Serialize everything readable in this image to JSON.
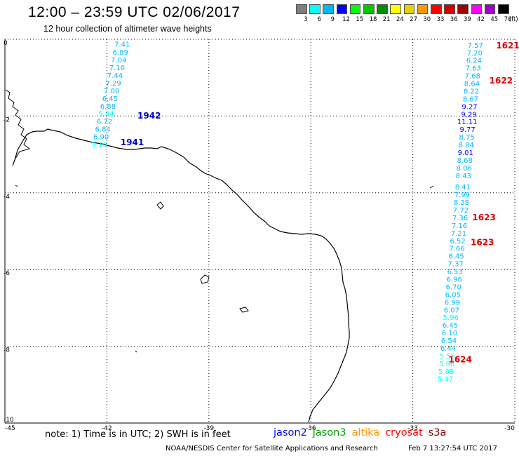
{
  "header": {
    "title": "12:00 – 23:59 UTC 02/06/2017",
    "subtitle": "12 hour collection of altimeter wave heights"
  },
  "colorbar": {
    "unit": "(ft)",
    "levels": [
      {
        "label": "3",
        "color": "#7f7f7f"
      },
      {
        "label": "6",
        "color": "#00ffff"
      },
      {
        "label": "9",
        "color": "#00b7ff"
      },
      {
        "label": "12",
        "color": "#0000ff"
      },
      {
        "label": "15",
        "color": "#00ff00"
      },
      {
        "label": "18",
        "color": "#00c800"
      },
      {
        "label": "21",
        "color": "#008c00"
      },
      {
        "label": "24",
        "color": "#ffff00"
      },
      {
        "label": "27",
        "color": "#e5d000"
      },
      {
        "label": "30",
        "color": "#ff9900"
      },
      {
        "label": "33",
        "color": "#ff0000"
      },
      {
        "label": "36",
        "color": "#d00000"
      },
      {
        "label": "39",
        "color": "#a00000"
      },
      {
        "label": "42",
        "color": "#ff00ff"
      },
      {
        "label": "45",
        "color": "#a000c8"
      },
      {
        "label": "70",
        "color": "#000000"
      }
    ]
  },
  "axes": {
    "lon_ticks": [
      "-45",
      "-42",
      "-39",
      "-36",
      "-33",
      "-30"
    ],
    "lat_ticks": [
      "0",
      "-2",
      "-4",
      "-6",
      "-8",
      "-10"
    ],
    "lon_range": [
      -45,
      -30
    ],
    "lat_range": [
      0,
      -10
    ]
  },
  "tracks": [
    {
      "id": "track-west",
      "labels": [
        {
          "text": "1942",
          "color": "#0000c8",
          "lon": -41.1,
          "lat": -1.9
        },
        {
          "text": "1941",
          "color": "#0000c8",
          "lon": -41.6,
          "lat": -2.6
        }
      ],
      "points": [
        {
          "v": "7.41",
          "lon": -41.55,
          "lat": -0.05,
          "c": "#00b7ff"
        },
        {
          "v": "6.89",
          "lon": -41.6,
          "lat": -0.26,
          "c": "#00b7ff"
        },
        {
          "v": "7.04",
          "lon": -41.65,
          "lat": -0.46,
          "c": "#00b7ff"
        },
        {
          "v": "7.10",
          "lon": -41.7,
          "lat": -0.66,
          "c": "#00b7ff"
        },
        {
          "v": "7.44",
          "lon": -41.76,
          "lat": -0.86,
          "c": "#00b7ff"
        },
        {
          "v": "7.29",
          "lon": -41.81,
          "lat": -1.06,
          "c": "#00b7ff"
        },
        {
          "v": "7.00",
          "lon": -41.86,
          "lat": -1.26,
          "c": "#00b7ff"
        },
        {
          "v": "6.45",
          "lon": -41.91,
          "lat": -1.46,
          "c": "#00b7ff"
        },
        {
          "v": "6.88",
          "lon": -41.97,
          "lat": -1.66,
          "c": "#00b7ff"
        },
        {
          "v": "5.84",
          "lon": -42.02,
          "lat": -1.86,
          "c": "#00ffff"
        },
        {
          "v": "6.72",
          "lon": -42.07,
          "lat": -2.06,
          "c": "#00b7ff"
        },
        {
          "v": "6.84",
          "lon": -42.12,
          "lat": -2.26,
          "c": "#00b7ff"
        },
        {
          "v": "6.90",
          "lon": -42.17,
          "lat": -2.46,
          "c": "#00b7ff"
        },
        {
          "v": "5.10",
          "lon": -42.22,
          "lat": -2.66,
          "c": "#00ffff"
        }
      ]
    },
    {
      "id": "track-east",
      "labels": [
        {
          "text": "1621",
          "color": "#e00000",
          "lon": -30.55,
          "lat": -0.07
        },
        {
          "text": "1622",
          "color": "#e00000",
          "lon": -30.75,
          "lat": -0.99
        },
        {
          "text": "1623",
          "color": "#e00000",
          "lon": -31.25,
          "lat": -4.55
        },
        {
          "text": "1623",
          "color": "#e00000",
          "lon": -31.3,
          "lat": -5.2
        },
        {
          "text": "1624",
          "color": "#e00000",
          "lon": -31.95,
          "lat": -8.25
        }
      ],
      "points": [
        {
          "v": "7.57",
          "lon": -31.16,
          "lat": -0.07,
          "c": "#00b7ff"
        },
        {
          "v": "7.20",
          "lon": -31.18,
          "lat": -0.27,
          "c": "#00b7ff"
        },
        {
          "v": "6.24",
          "lon": -31.2,
          "lat": -0.47,
          "c": "#00b7ff"
        },
        {
          "v": "7.63",
          "lon": -31.22,
          "lat": -0.67,
          "c": "#00b7ff"
        },
        {
          "v": "7.68",
          "lon": -31.24,
          "lat": -0.87,
          "c": "#00b7ff"
        },
        {
          "v": "8.64",
          "lon": -31.26,
          "lat": -1.07,
          "c": "#00b7ff"
        },
        {
          "v": "8.22",
          "lon": -31.28,
          "lat": -1.27,
          "c": "#00b7ff"
        },
        {
          "v": "8.67",
          "lon": -31.3,
          "lat": -1.47,
          "c": "#00b7ff"
        },
        {
          "v": "9.27",
          "lon": -31.33,
          "lat": -1.67,
          "c": "#0000ff"
        },
        {
          "v": "9.29",
          "lon": -31.35,
          "lat": -1.87,
          "c": "#0000ff"
        },
        {
          "v": "11.11",
          "lon": -31.4,
          "lat": -2.07,
          "c": "#0000ff"
        },
        {
          "v": "9.77",
          "lon": -31.39,
          "lat": -2.27,
          "c": "#0000ff"
        },
        {
          "v": "8.75",
          "lon": -31.41,
          "lat": -2.47,
          "c": "#00b7ff"
        },
        {
          "v": "8.84",
          "lon": -31.43,
          "lat": -2.67,
          "c": "#00b7ff"
        },
        {
          "v": "9.01",
          "lon": -31.45,
          "lat": -2.87,
          "c": "#0000ff"
        },
        {
          "v": "8.68",
          "lon": -31.47,
          "lat": -3.07,
          "c": "#00b7ff"
        },
        {
          "v": "8.06",
          "lon": -31.49,
          "lat": -3.27,
          "c": "#00b7ff"
        },
        {
          "v": "8.43",
          "lon": -31.51,
          "lat": -3.47,
          "c": "#00b7ff"
        },
        {
          "v": "8.41",
          "lon": -31.53,
          "lat": -3.77,
          "c": "#00b7ff"
        },
        {
          "v": "7.99",
          "lon": -31.55,
          "lat": -3.97,
          "c": "#00b7ff"
        },
        {
          "v": "8.28",
          "lon": -31.57,
          "lat": -4.17,
          "c": "#00b7ff"
        },
        {
          "v": "7.72",
          "lon": -31.59,
          "lat": -4.37,
          "c": "#00b7ff"
        },
        {
          "v": "7.36",
          "lon": -31.61,
          "lat": -4.57,
          "c": "#00b7ff"
        },
        {
          "v": "7.16",
          "lon": -31.63,
          "lat": -4.77,
          "c": "#00b7ff"
        },
        {
          "v": "7.21",
          "lon": -31.65,
          "lat": -4.97,
          "c": "#00b7ff"
        },
        {
          "v": "6.52",
          "lon": -31.68,
          "lat": -5.17,
          "c": "#00b7ff"
        },
        {
          "v": "7.66",
          "lon": -31.7,
          "lat": -5.37,
          "c": "#00b7ff"
        },
        {
          "v": "6.45",
          "lon": -31.72,
          "lat": -5.57,
          "c": "#00b7ff"
        },
        {
          "v": "7.37",
          "lon": -31.74,
          "lat": -5.77,
          "c": "#00b7ff"
        },
        {
          "v": "6.53",
          "lon": -31.76,
          "lat": -5.97,
          "c": "#00b7ff"
        },
        {
          "v": "6.96",
          "lon": -31.78,
          "lat": -6.17,
          "c": "#00b7ff"
        },
        {
          "v": "6.70",
          "lon": -31.8,
          "lat": -6.37,
          "c": "#00b7ff"
        },
        {
          "v": "6.05",
          "lon": -31.82,
          "lat": -6.57,
          "c": "#00b7ff"
        },
        {
          "v": "6.99",
          "lon": -31.84,
          "lat": -6.77,
          "c": "#00b7ff"
        },
        {
          "v": "6.07",
          "lon": -31.86,
          "lat": -6.97,
          "c": "#00b7ff"
        },
        {
          "v": "5.96",
          "lon": -31.88,
          "lat": -7.17,
          "c": "#00ffff"
        },
        {
          "v": "6.45",
          "lon": -31.9,
          "lat": -7.37,
          "c": "#00b7ff"
        },
        {
          "v": "6.10",
          "lon": -31.92,
          "lat": -7.57,
          "c": "#00b7ff"
        },
        {
          "v": "6.54",
          "lon": -31.94,
          "lat": -7.77,
          "c": "#00b7ff"
        },
        {
          "v": "6.44",
          "lon": -31.96,
          "lat": -7.97,
          "c": "#00b7ff"
        },
        {
          "v": "5.55",
          "lon": -31.98,
          "lat": -8.17,
          "c": "#00ffff"
        },
        {
          "v": "5.96",
          "lon": -32.0,
          "lat": -8.37,
          "c": "#00ffff"
        },
        {
          "v": "5.89",
          "lon": -32.02,
          "lat": -8.57,
          "c": "#00ffff"
        },
        {
          "v": "5.37",
          "lon": -32.04,
          "lat": -8.77,
          "c": "#00ffff"
        }
      ]
    }
  ],
  "footer": {
    "note": "note:  1) Time is in UTC;  2) SWH is in feet",
    "legend": [
      {
        "label": "jason2",
        "color": "#0000ff"
      },
      {
        "label": "jason3",
        "color": "#009900"
      },
      {
        "label": "altika",
        "color": "#ff9900"
      },
      {
        "label": "cryosat",
        "color": "#ff0000"
      },
      {
        "label": "s3a",
        "color": "#800000"
      }
    ],
    "credit": "NOAA/NESDIS Center for Satellite Applications and Research",
    "timestamp": "Feb  7 13:27:54 UTC 2017"
  }
}
